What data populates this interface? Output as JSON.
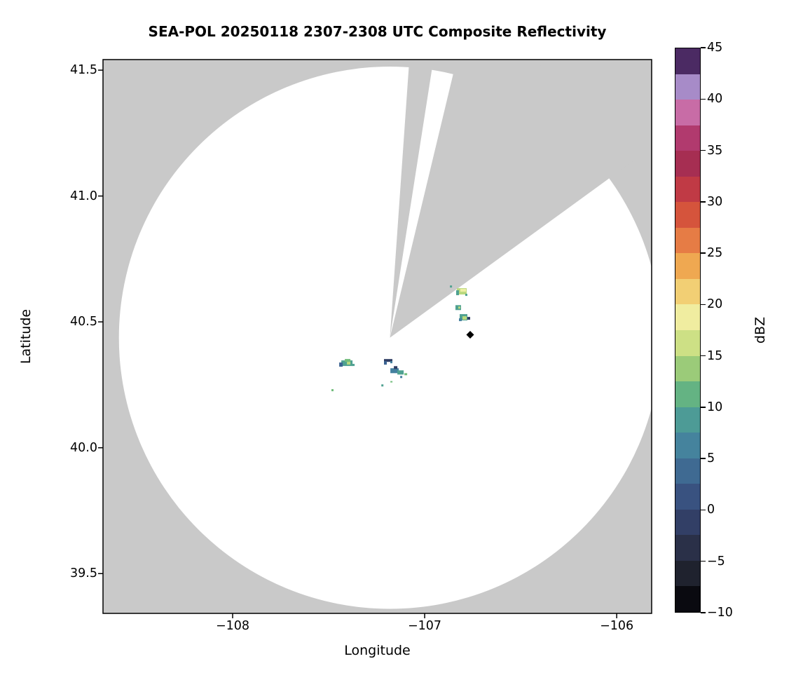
{
  "figure": {
    "title": "SEA-POL 20250118 2307-2308 UTC Composite Reflectivity",
    "xlabel": "Longitude",
    "ylabel": "Latitude"
  },
  "chart_data": {
    "type": "heatmap",
    "subtype": "radar-composite-reflectivity-ppi",
    "title": "SEA-POL 20250118 2307-2308 UTC Composite Reflectivity",
    "xlabel": "Longitude",
    "ylabel": "Latitude",
    "xlim": [
      -108.675,
      -105.818
    ],
    "ylim": [
      39.342,
      41.542
    ],
    "grid": false,
    "x_ticks": [
      {
        "value": -108,
        "label": "−108"
      },
      {
        "value": -107,
        "label": "−107"
      },
      {
        "value": -106,
        "label": "−106"
      }
    ],
    "y_ticks": [
      {
        "value": 41.5,
        "label": "41.5"
      },
      {
        "value": 41.0,
        "label": "41.0"
      },
      {
        "value": 40.5,
        "label": "40.5"
      },
      {
        "value": 40.0,
        "label": "40.0"
      },
      {
        "value": 39.5,
        "label": "39.5"
      }
    ],
    "radar": {
      "name": "SEA-POL",
      "lon": -107.181,
      "lat": 40.437,
      "range_radius_deg_lat": 1.077,
      "coverage_color": "#ffffff",
      "no_data_color": "#c9c9c9",
      "blocked_sectors_azimuth_deg": [
        [
          4.0,
          8.9
        ],
        [
          13.5,
          54.0
        ]
      ]
    },
    "marker": {
      "shape": "diamond",
      "lon": -106.763,
      "lat": 40.449,
      "color": "#000000",
      "half_size_px": 5.5
    },
    "echo_colors": {
      "navy": "#2f3d63",
      "blue": "#3b6392",
      "steel": "#44809f",
      "teal": "#4fa191",
      "green": "#72bd7c",
      "yellow_green": "#bad97e",
      "pale_yellow": "#eeefa4"
    },
    "echoes": [
      {
        "lon": -107.405,
        "lat": 40.336,
        "dbz_max": 13,
        "cells": [
          [
            -8,
            -4,
            16,
            8,
            "teal"
          ],
          [
            -11,
            -1,
            5,
            6,
            "blue"
          ],
          [
            -3,
            -6,
            8,
            4,
            "green"
          ],
          [
            0,
            -2,
            5,
            4,
            "yellow_green"
          ],
          [
            7,
            1,
            4,
            3,
            "teal"
          ]
        ]
      },
      {
        "lon": -107.19,
        "lat": 40.344,
        "dbz_max": 2,
        "cells": [
          [
            -6,
            -3,
            12,
            4,
            "navy"
          ],
          [
            -6,
            0,
            4,
            5,
            "blue"
          ],
          [
            3,
            0,
            3,
            3,
            "steel"
          ]
        ]
      },
      {
        "lon": -107.142,
        "lat": 40.302,
        "dbz_max": 8,
        "cells": [
          [
            -10,
            -5,
            12,
            7,
            "steel"
          ],
          [
            0,
            -2,
            9,
            6,
            "teal"
          ],
          [
            -5,
            -8,
            5,
            4,
            "navy"
          ],
          [
            10,
            2,
            4,
            3,
            "green"
          ],
          [
            4,
            6,
            3,
            3,
            "steel"
          ]
        ]
      },
      {
        "lon": -107.222,
        "lat": 40.249,
        "dbz_max": 8,
        "cells": [
          [
            -1,
            -1,
            3,
            3,
            "teal"
          ]
        ]
      },
      {
        "lon": -107.175,
        "lat": 40.262,
        "dbz_max": 10,
        "cells": [
          [
            -1,
            -1,
            3,
            2,
            "green"
          ]
        ]
      },
      {
        "lon": -107.482,
        "lat": 40.23,
        "dbz_max": 10,
        "cells": [
          [
            -1,
            -1,
            3,
            3,
            "green"
          ]
        ]
      },
      {
        "lon": -106.807,
        "lat": 40.62,
        "dbz_max": 17,
        "cells": [
          [
            -7,
            -5,
            14,
            9,
            "yellow_green"
          ],
          [
            -8,
            -2,
            4,
            7,
            "teal"
          ],
          [
            -2,
            -4,
            8,
            4,
            "pale_yellow"
          ],
          [
            5,
            3,
            3,
            3,
            "teal"
          ]
        ]
      },
      {
        "lon": -106.865,
        "lat": 40.642,
        "dbz_max": 9,
        "cells": [
          [
            -1,
            -1,
            3,
            3,
            "teal"
          ]
        ]
      },
      {
        "lon": -106.825,
        "lat": 40.558,
        "dbz_max": 12,
        "cells": [
          [
            -4,
            -3,
            8,
            7,
            "teal"
          ],
          [
            0,
            -1,
            3,
            3,
            "yellow_green"
          ]
        ]
      },
      {
        "lon": -106.796,
        "lat": 40.517,
        "dbz_max": 14,
        "cells": [
          [
            -6,
            -5,
            11,
            9,
            "teal"
          ],
          [
            -2,
            -2,
            6,
            5,
            "yellow_green"
          ],
          [
            -7,
            1,
            4,
            4,
            "steel"
          ],
          [
            5,
            -1,
            4,
            4,
            "navy"
          ]
        ]
      }
    ],
    "colorbar": {
      "label": "dBZ",
      "min": -10,
      "max": 45,
      "tick_values": [
        45,
        40,
        35,
        30,
        25,
        20,
        15,
        10,
        5,
        0,
        -5,
        -10
      ],
      "tick_labels": [
        "45",
        "40",
        "35",
        "30",
        "25",
        "20",
        "15",
        "10",
        "5",
        "0",
        "−5",
        "−10"
      ],
      "segment_step_dbz": 2.5,
      "segment_colors_bottom_to_top": [
        "#0a0a10",
        "#1f222e",
        "#2a3048",
        "#323f66",
        "#395280",
        "#3f6a92",
        "#45839d",
        "#4d9b96",
        "#64b383",
        "#9bcb79",
        "#cde085",
        "#f0eda0",
        "#f2cf74",
        "#efa851",
        "#e67c45",
        "#d5543c",
        "#c03a45",
        "#a62e52",
        "#b13a6e",
        "#c86ca6",
        "#a78bc8",
        "#4b2a63"
      ]
    }
  }
}
